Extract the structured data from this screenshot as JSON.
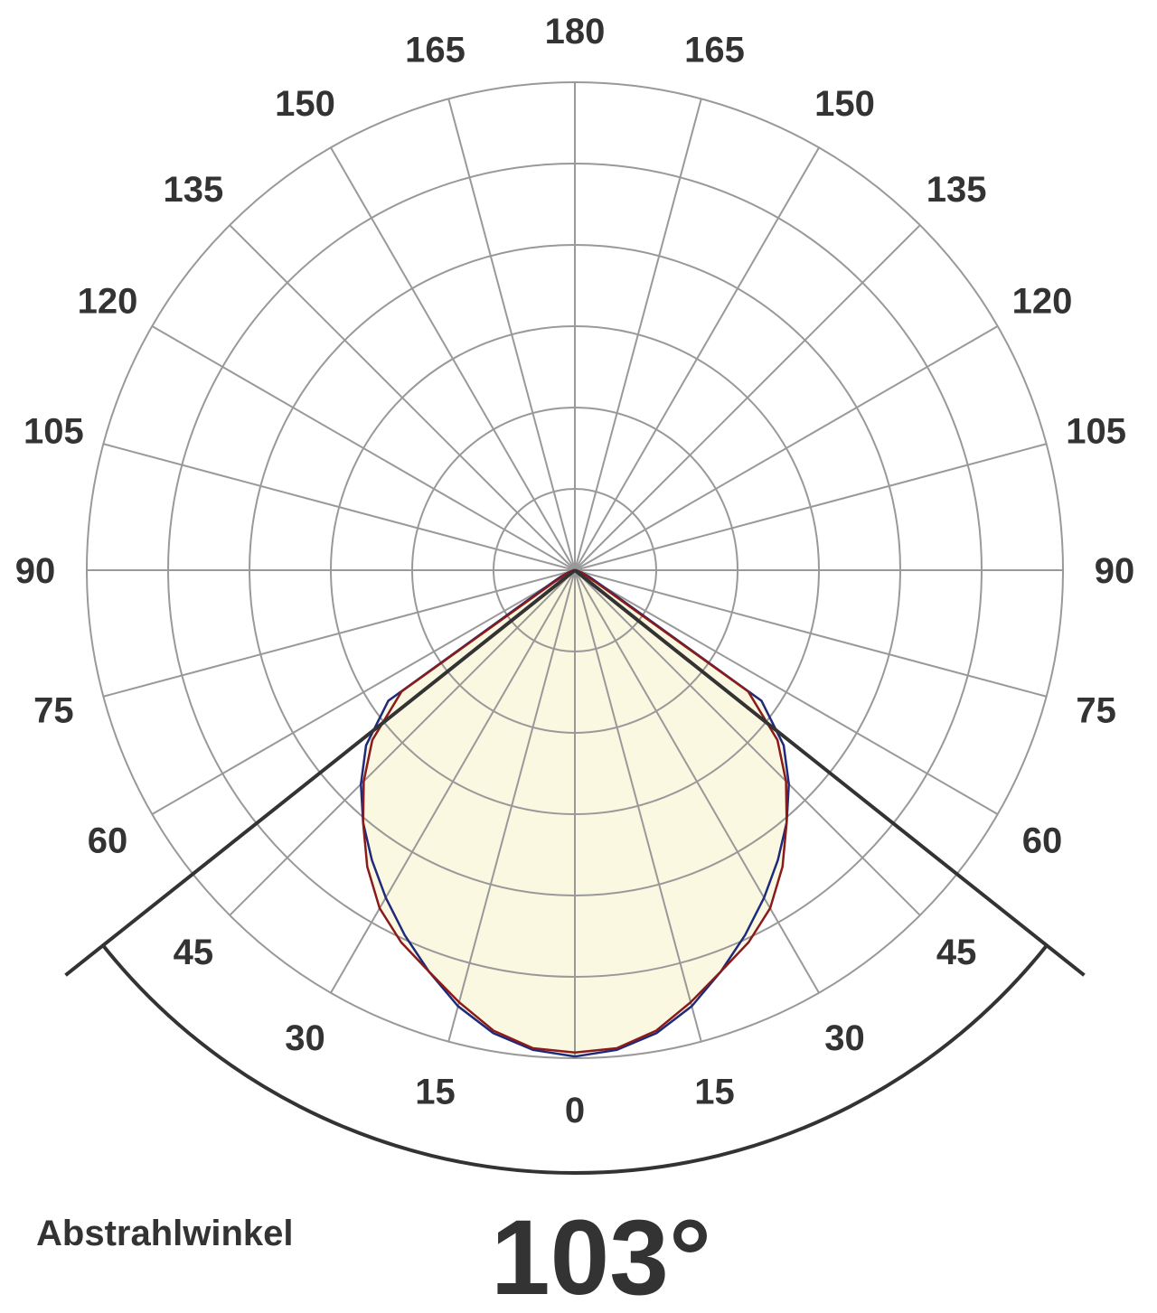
{
  "chart_data": {
    "type": "polar",
    "angle_ticks": [
      0,
      15,
      30,
      45,
      60,
      75,
      90,
      105,
      120,
      135,
      150,
      165,
      180
    ],
    "rlim": [
      0,
      6
    ],
    "rticks": [
      1,
      2,
      3,
      4,
      5,
      6
    ],
    "angles": [
      0,
      5,
      10,
      15,
      20,
      25,
      30,
      35,
      40,
      45,
      50,
      55,
      60,
      65,
      70,
      75,
      80,
      85,
      90
    ],
    "series": [
      {
        "color": "#1f2a7a",
        "values": [
          5.98,
          5.92,
          5.78,
          5.55,
          5.25,
          4.95,
          4.65,
          4.35,
          4.05,
          3.72,
          3.35,
          2.8,
          0.4,
          0.2,
          0.1,
          0.05,
          0.02,
          0.01,
          0
        ]
      },
      {
        "color": "#8b1a1a",
        "values": [
          5.93,
          5.9,
          5.75,
          5.5,
          5.25,
          5.05,
          4.8,
          4.45,
          4.05,
          3.67,
          3.25,
          2.6,
          0.3,
          0.15,
          0.08,
          0.04,
          0.02,
          0.01,
          0
        ]
      }
    ],
    "fill_color": "#fbf8e2",
    "beam_angle": 103,
    "beam_angle_label": "103°",
    "beam_title": "Abstrahlwinkel"
  }
}
